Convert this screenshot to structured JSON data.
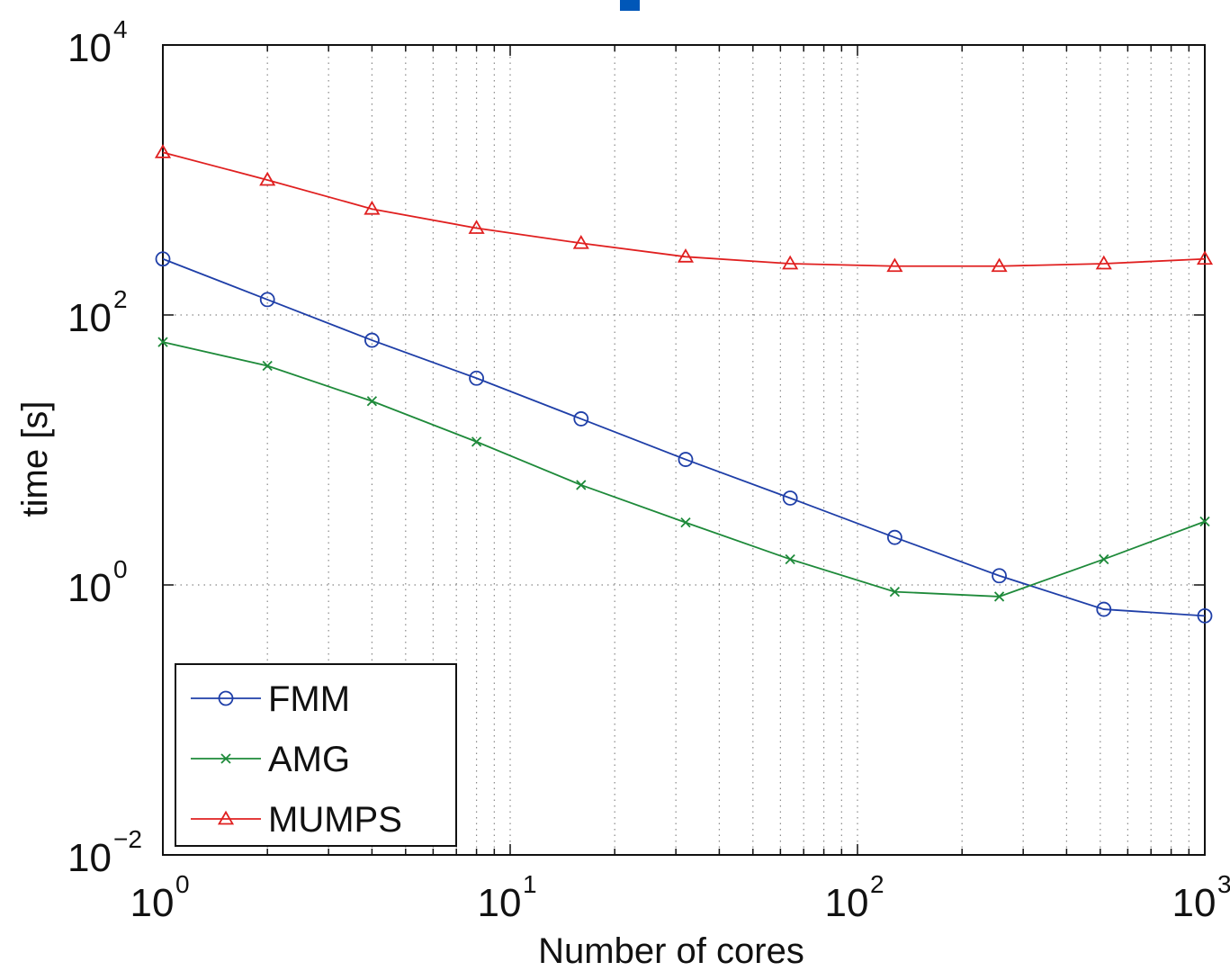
{
  "chart_data": {
    "type": "line",
    "title": "",
    "xlabel": "Number of cores",
    "ylabel": "time [s]",
    "xscale": "log",
    "yscale": "log",
    "xlim": [
      1,
      1000
    ],
    "ylim": [
      0.01,
      10000
    ],
    "grid": true,
    "legend_position": "bottom-left",
    "x": [
      1,
      2,
      4,
      8,
      16,
      32,
      64,
      128,
      256,
      512,
      1000
    ],
    "x_ticks": [
      {
        "base": "10",
        "exp": "0",
        "value": 1
      },
      {
        "base": "10",
        "exp": "1",
        "value": 10
      },
      {
        "base": "10",
        "exp": "2",
        "value": 100
      },
      {
        "base": "10",
        "exp": "3",
        "value": 1000
      }
    ],
    "y_ticks": [
      {
        "base": "10",
        "exp": "4",
        "value": 10000
      },
      {
        "base": "10",
        "exp": "2",
        "value": 100
      },
      {
        "base": "10",
        "exp": "0",
        "value": 1
      },
      {
        "base": "10",
        "exp": "−2",
        "value": 0.01
      }
    ],
    "series": [
      {
        "name": "FMM",
        "color": "#1f3fa8",
        "marker": "circle",
        "values": [
          260,
          130,
          65,
          34,
          17,
          8.5,
          4.4,
          2.25,
          1.17,
          0.66,
          0.59
        ]
      },
      {
        "name": "AMG",
        "color": "#1e8a3a",
        "marker": "x",
        "values": [
          63,
          42,
          23,
          11.5,
          5.5,
          2.9,
          1.55,
          0.89,
          0.82,
          1.55,
          2.95
        ]
      },
      {
        "name": "MUMPS",
        "color": "#e02020",
        "marker": "triangle",
        "values": [
          1600,
          1000,
          610,
          440,
          340,
          270,
          240,
          230,
          230,
          240,
          260
        ]
      }
    ],
    "top_mark_color": "#0057b8"
  }
}
